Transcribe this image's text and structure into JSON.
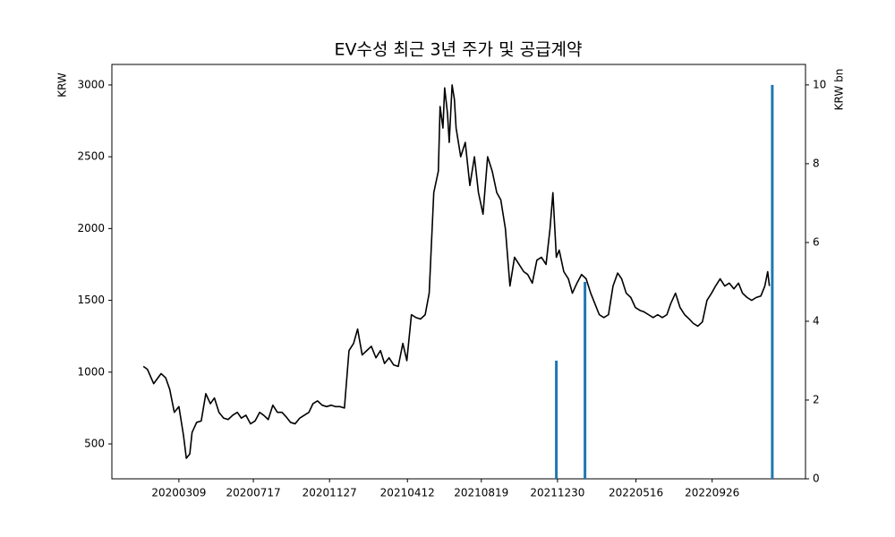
{
  "chart_data": {
    "type": "line",
    "title": "EV수성 최근 3년 주가 및 공급계약",
    "y_label": "KRW",
    "y2_label": "KRW bn",
    "xlim": [
      "2019-11-13",
      "2023-03-08"
    ],
    "xticks": [
      {
        "value": "2020-03-09",
        "label": "20200309"
      },
      {
        "value": "2020-07-17",
        "label": "20200717"
      },
      {
        "value": "2020-11-27",
        "label": "20201127"
      },
      {
        "value": "2021-04-12",
        "label": "20210412"
      },
      {
        "value": "2021-08-19",
        "label": "20210819"
      },
      {
        "value": "2021-12-30",
        "label": "20211230"
      },
      {
        "value": "2022-05-16",
        "label": "20220516"
      },
      {
        "value": "2022-09-26",
        "label": "20220926"
      }
    ],
    "ylim": [
      257,
      3143
    ],
    "yticks": [
      500,
      1000,
      1500,
      2000,
      2500,
      3000
    ],
    "y2lim": [
      0,
      10.52
    ],
    "y2ticks": [
      0,
      2,
      4,
      6,
      8,
      10
    ],
    "series": [
      {
        "type": "line",
        "color": "#000000",
        "x": [
          "2020-01-07",
          "2020-01-14",
          "2020-01-25",
          "2020-02-07",
          "2020-02-15",
          "2020-02-22",
          "2020-03-01",
          "2020-03-09",
          "2020-03-17",
          "2020-03-22",
          "2020-03-28",
          "2020-04-01",
          "2020-04-09",
          "2020-04-17",
          "2020-04-25",
          "2020-05-03",
          "2020-05-10",
          "2020-05-18",
          "2020-05-26",
          "2020-06-03",
          "2020-06-11",
          "2020-06-19",
          "2020-06-26",
          "2020-07-04",
          "2020-07-12",
          "2020-07-20",
          "2020-07-28",
          "2020-08-04",
          "2020-08-12",
          "2020-08-20",
          "2020-08-28",
          "2020-09-05",
          "2020-09-12",
          "2020-09-20",
          "2020-09-28",
          "2020-10-06",
          "2020-10-14",
          "2020-10-22",
          "2020-10-29",
          "2020-11-06",
          "2020-11-14",
          "2020-11-22",
          "2020-11-30",
          "2020-12-07",
          "2020-12-15",
          "2020-12-23",
          "2020-12-31",
          "2021-01-08",
          "2021-01-15",
          "2021-01-23",
          "2021-01-31",
          "2021-02-08",
          "2021-02-16",
          "2021-02-24",
          "2021-03-03",
          "2021-03-11",
          "2021-03-19",
          "2021-03-27",
          "2021-04-04",
          "2021-04-11",
          "2021-04-19",
          "2021-04-27",
          "2021-05-05",
          "2021-05-13",
          "2021-05-20",
          "2021-05-28",
          "2021-06-05",
          "2021-06-08",
          "2021-06-13",
          "2021-06-16",
          "2021-06-21",
          "2021-06-24",
          "2021-06-29",
          "2021-07-03",
          "2021-07-06",
          "2021-07-14",
          "2021-07-22",
          "2021-07-30",
          "2021-08-07",
          "2021-08-14",
          "2021-08-22",
          "2021-08-30",
          "2021-09-07",
          "2021-09-15",
          "2021-09-22",
          "2021-09-30",
          "2021-10-08",
          "2021-10-16",
          "2021-10-24",
          "2021-11-01",
          "2021-11-08",
          "2021-11-16",
          "2021-11-24",
          "2021-12-02",
          "2021-12-10",
          "2021-12-17",
          "2021-12-22",
          "2021-12-28",
          "2022-01-02",
          "2022-01-10",
          "2022-01-18",
          "2022-01-25",
          "2022-02-02",
          "2022-02-10",
          "2022-02-18",
          "2022-02-26",
          "2022-03-06",
          "2022-03-13",
          "2022-03-21",
          "2022-03-29",
          "2022-04-06",
          "2022-04-14",
          "2022-04-21",
          "2022-04-29",
          "2022-05-07",
          "2022-05-15",
          "2022-05-23",
          "2022-05-30",
          "2022-06-07",
          "2022-06-15",
          "2022-06-23",
          "2022-07-01",
          "2022-07-09",
          "2022-07-16",
          "2022-07-24",
          "2022-08-01",
          "2022-08-09",
          "2022-08-17",
          "2022-08-24",
          "2022-09-01",
          "2022-09-09",
          "2022-09-17",
          "2022-09-25",
          "2022-10-02",
          "2022-10-10",
          "2022-10-18",
          "2022-10-26",
          "2022-11-03",
          "2022-11-11",
          "2022-11-18",
          "2022-11-26",
          "2022-12-04",
          "2022-12-12",
          "2022-12-20",
          "2022-12-27",
          "2023-01-01",
          "2023-01-04"
        ],
        "values": [
          1040,
          1020,
          920,
          990,
          960,
          880,
          720,
          760,
          560,
          400,
          430,
          580,
          650,
          660,
          850,
          780,
          820,
          720,
          680,
          670,
          700,
          720,
          680,
          700,
          640,
          660,
          720,
          700,
          670,
          770,
          720,
          720,
          690,
          650,
          640,
          680,
          700,
          720,
          780,
          800,
          770,
          760,
          770,
          760,
          760,
          750,
          1150,
          1200,
          1300,
          1120,
          1150,
          1180,
          1100,
          1150,
          1060,
          1100,
          1050,
          1040,
          1200,
          1080,
          1400,
          1380,
          1370,
          1400,
          1550,
          2250,
          2400,
          2850,
          2700,
          2980,
          2800,
          2600,
          3000,
          2900,
          2700,
          2500,
          2600,
          2300,
          2500,
          2250,
          2100,
          2500,
          2400,
          2250,
          2200,
          2000,
          1600,
          1800,
          1750,
          1700,
          1680,
          1620,
          1780,
          1800,
          1750,
          2000,
          2250,
          1800,
          1850,
          1700,
          1650,
          1550,
          1620,
          1680,
          1650,
          1550,
          1470,
          1400,
          1380,
          1400,
          1600,
          1690,
          1650,
          1550,
          1520,
          1450,
          1430,
          1420,
          1400,
          1380,
          1400,
          1380,
          1400,
          1480,
          1550,
          1450,
          1400,
          1370,
          1340,
          1320,
          1350,
          1500,
          1550,
          1600,
          1650,
          1600,
          1620,
          1580,
          1620,
          1550,
          1520,
          1500,
          1520,
          1530,
          1600,
          1700,
          1600
        ]
      },
      {
        "type": "bar",
        "axis": "y2",
        "color": "#1f77b4",
        "x": [
          "2021-12-28",
          "2022-02-16",
          "2023-01-09"
        ],
        "values": [
          3,
          5,
          10
        ]
      }
    ]
  }
}
